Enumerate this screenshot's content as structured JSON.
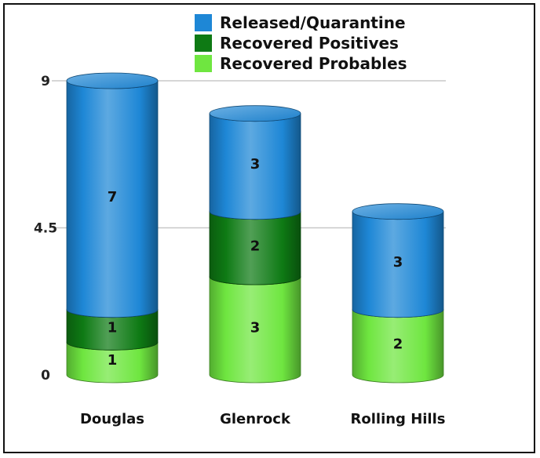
{
  "chart_data": {
    "type": "bar",
    "stacked": true,
    "style": "3d-cylinder",
    "categories": [
      "Douglas",
      "Glenrock",
      "Rolling Hills"
    ],
    "series": [
      {
        "name": "Recovered Probables",
        "values": [
          1,
          3,
          2
        ],
        "color": "#6fe640"
      },
      {
        "name": "Recovered Positives",
        "values": [
          1,
          2,
          0
        ],
        "color": "#0e7a14"
      },
      {
        "name": "Released/Quarantine",
        "values": [
          7,
          3,
          3
        ],
        "color": "#1e87d6"
      }
    ],
    "yticks": [
      0,
      4.5,
      9
    ],
    "ylim": [
      0,
      9
    ],
    "grid": true,
    "legend_position": "top",
    "legend_order": [
      "Released/Quarantine",
      "Recovered Positives",
      "Recovered Probables"
    ]
  }
}
